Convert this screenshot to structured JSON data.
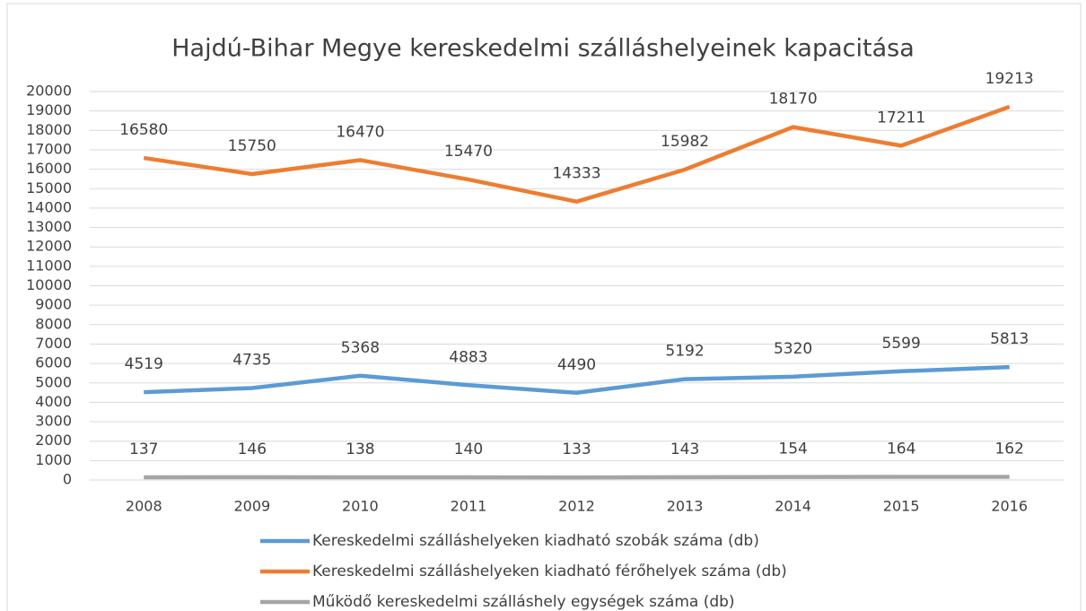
{
  "chart_data": {
    "type": "line",
    "title": "Hajdú-Bihar Megye kereskedelmi szálláshelyeinek kapacitása",
    "categories": [
      "2008",
      "2009",
      "2010",
      "2011",
      "2012",
      "2013",
      "2014",
      "2015",
      "2016"
    ],
    "series": [
      {
        "name": "Kereskedelmi szálláshelyeken kiadható szobák száma (db)",
        "color": "#5b9bd5",
        "values": [
          4519,
          4735,
          5368,
          4883,
          4490,
          5192,
          5320,
          5599,
          5813
        ]
      },
      {
        "name": "Kereskedelmi szálláshelyeken kiadható férőhelyek száma (db)",
        "color": "#ed7d31",
        "values": [
          16580,
          15750,
          16470,
          15470,
          14333,
          15982,
          18170,
          17211,
          19213
        ]
      },
      {
        "name": "Működő kereskedelmi szálláshely egységek száma (db)",
        "color": "#a5a5a5",
        "values": [
          137,
          146,
          138,
          140,
          133,
          143,
          154,
          164,
          162
        ]
      }
    ],
    "ylim": [
      0,
      20000
    ],
    "yticks": [
      0,
      1000,
      2000,
      3000,
      4000,
      5000,
      6000,
      7000,
      8000,
      9000,
      10000,
      11000,
      12000,
      13000,
      14000,
      15000,
      16000,
      17000,
      18000,
      19000,
      20000
    ],
    "grid": true
  }
}
